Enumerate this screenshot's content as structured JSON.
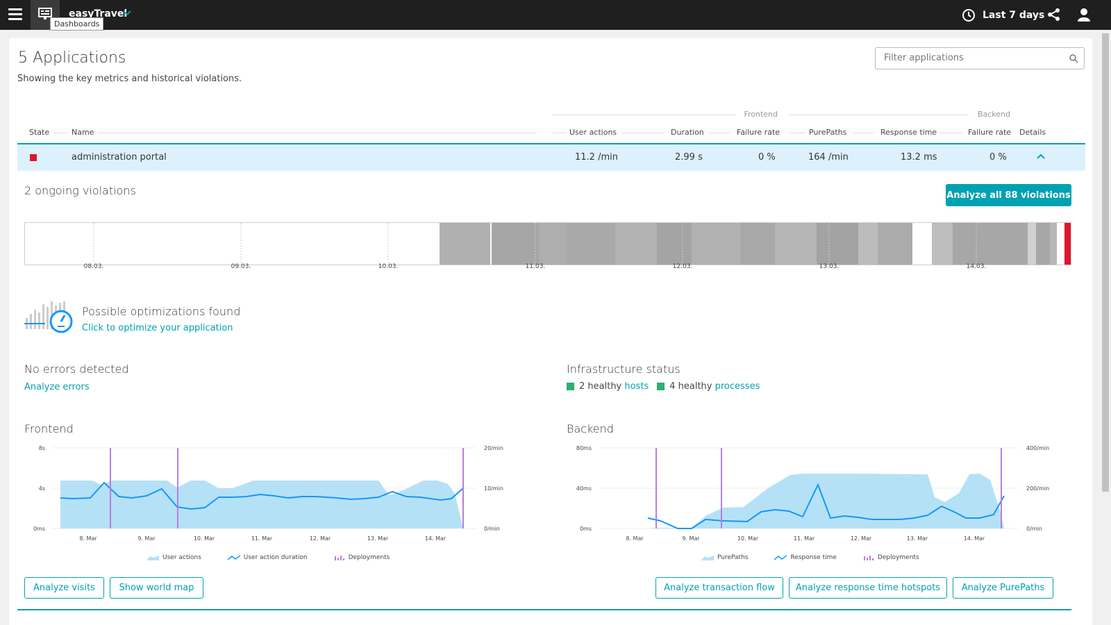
{
  "topbar": {
    "app_name": "easyTravel",
    "tooltip": "Dashboards",
    "timeframe": "Last 7 days",
    "icons": [
      "menu-icon",
      "dashboard-icon",
      "chevron-down-icon",
      "clock-icon",
      "share-icon",
      "user-icon"
    ]
  },
  "header": {
    "title": "5 Applications",
    "subtitle": "Showing the key metrics and historical violations.",
    "filter_placeholder": "Filter applications"
  },
  "table": {
    "group_frontend": "Frontend",
    "group_backend": "Backend",
    "columns": [
      "State",
      "Name",
      "User actions",
      "Duration",
      "Failure rate",
      "PurePaths",
      "Response time",
      "Failure rate",
      "Details"
    ],
    "rows": [
      {
        "state": "critical",
        "name": "administration portal",
        "user_actions": "11.2 /min",
        "duration": "2.99 s",
        "frontend_failure_rate": "0 %",
        "purepaths": "164 /min",
        "response_time": "13.2 ms",
        "backend_failure_rate": "0 %"
      }
    ]
  },
  "violations": {
    "title": "2 ongoing violations",
    "button": "Analyze all 88 violations",
    "ticks": [
      "08.03.",
      "09.03.",
      "10.03.",
      "11.03.",
      "12.03.",
      "13.03.",
      "14.03."
    ]
  },
  "optimization": {
    "title": "Possible optimizations found",
    "link": "Click to optimize your application"
  },
  "errors": {
    "title": "No errors detected",
    "link": "Analyze errors"
  },
  "infrastructure": {
    "title": "Infrastructure status",
    "hosts_text": "2 healthy",
    "hosts_link": "hosts",
    "processes_text": "4 healthy",
    "processes_link": "processes",
    "status_color": "#2ab06f"
  },
  "frontend": {
    "title": "Frontend",
    "y_left": [
      "8s",
      "4s",
      "0ms"
    ],
    "y_right": [
      "20/min",
      "10/min",
      "0/min"
    ],
    "x_ticks": [
      "8. Mar",
      "9. Mar",
      "10. Mar",
      "11. Mar",
      "12. Mar",
      "13. Mar",
      "14. Mar"
    ],
    "legend": [
      "User actions",
      "User action duration",
      "Deployments"
    ],
    "buttons": [
      "Analyze visits",
      "Show world map"
    ]
  },
  "backend": {
    "title": "Backend",
    "y_left": [
      "80ms",
      "40ms",
      "0ms"
    ],
    "y_right": [
      "400/min",
      "200/min",
      "0/min"
    ],
    "x_ticks": [
      "8. Mar",
      "9. Mar",
      "10. Mar",
      "11. Mar",
      "12. Mar",
      "13. Mar",
      "14. Mar"
    ],
    "legend": [
      "PurePaths",
      "Response time",
      "Deployments"
    ],
    "buttons": [
      "Analyze transaction flow",
      "Analyze response time hotspots",
      "Analyze PurePaths"
    ]
  },
  "colors": {
    "accent": "#00a1b2",
    "area": "#b5e1f6",
    "line": "#1496ff",
    "deployment": "#b77ee0",
    "critical": "#dc172a"
  }
}
